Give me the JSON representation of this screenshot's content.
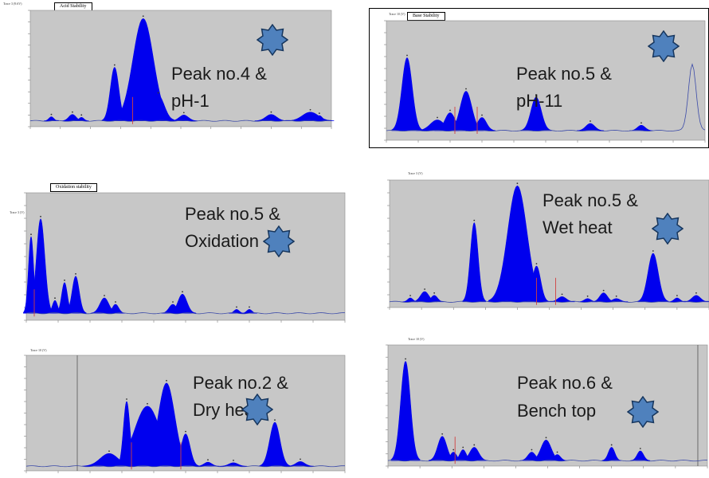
{
  "colors": {
    "fill": "#0000ee",
    "plot_bg": "#c7c7c7",
    "baseline": "#3b4aa8",
    "marker": "#d04040",
    "star": "#4f81bd",
    "star_edge": "#17365d",
    "watermark": "#e6e6e6"
  },
  "icons": {
    "badge": "star-icon"
  },
  "chart_data": [
    {
      "type": "area",
      "header": "Trace 3 (9.6V)",
      "tag": "Acid  Stability",
      "caption_line1": "Peak no.4 &",
      "caption_line2": "pH-1",
      "xlim": [
        0,
        100
      ],
      "ylim": [
        0,
        1000
      ],
      "baseline": 50,
      "peaks": [
        {
          "x": 7,
          "h": 35,
          "w": 0.8
        },
        {
          "x": 14,
          "h": 55,
          "w": 1.2
        },
        {
          "x": 17,
          "h": 30,
          "w": 0.8
        },
        {
          "x": 28,
          "h": 460,
          "w": 1.4
        },
        {
          "x": 37.5,
          "h": 880,
          "w": 3.4
        },
        {
          "x": 42.5,
          "h": 220,
          "w": 2.0
        },
        {
          "x": 51,
          "h": 50,
          "w": 1.5
        },
        {
          "x": 80,
          "h": 55,
          "w": 1.8
        },
        {
          "x": 93,
          "h": 75,
          "w": 2.6
        },
        {
          "x": 96,
          "h": 45,
          "w": 1.0
        }
      ],
      "markers": [
        34
      ]
    },
    {
      "type": "area",
      "header": "Trace 10 (V)",
      "tag": "Base Stability",
      "caption_line1": "Peak no.5 &",
      "caption_line2": "pH-11",
      "xlim": [
        0,
        100
      ],
      "ylim": [
        0,
        1000
      ],
      "baseline": 80,
      "peaks": [
        {
          "x": 6.5,
          "h": 610,
          "w": 1.6
        },
        {
          "x": 16,
          "h": 90,
          "w": 2.2
        },
        {
          "x": 20,
          "h": 150,
          "w": 1.6
        },
        {
          "x": 25,
          "h": 330,
          "w": 1.8
        },
        {
          "x": 30,
          "h": 110,
          "w": 1.4
        },
        {
          "x": 47,
          "h": 280,
          "w": 1.6
        },
        {
          "x": 64,
          "h": 60,
          "w": 1.4
        },
        {
          "x": 80,
          "h": 45,
          "w": 1.2
        }
      ],
      "line_peak": {
        "x": 96,
        "h": 560,
        "w": 1.2
      },
      "markers": [
        21.5,
        28.5
      ]
    },
    {
      "type": "area",
      "header": "Trace 3 (V)",
      "tag": "Oxidation stability",
      "caption_line1": "Peak no.5 &",
      "caption_line2": "Oxidation",
      "xlim": [
        0,
        100
      ],
      "ylim": [
        0,
        1000
      ],
      "baseline": 55,
      "peaks": [
        {
          "x": 1.5,
          "h": 600,
          "w": 0.8
        },
        {
          "x": 4.5,
          "h": 740,
          "w": 1.3
        },
        {
          "x": 9,
          "h": 100,
          "w": 0.8
        },
        {
          "x": 12,
          "h": 240,
          "w": 0.9
        },
        {
          "x": 15.5,
          "h": 290,
          "w": 1.1
        },
        {
          "x": 24.5,
          "h": 120,
          "w": 1.4
        },
        {
          "x": 28,
          "h": 70,
          "w": 1.0
        },
        {
          "x": 46,
          "h": 70,
          "w": 1.2
        },
        {
          "x": 49,
          "h": 150,
          "w": 1.4
        },
        {
          "x": 66,
          "h": 30,
          "w": 0.8
        },
        {
          "x": 70,
          "h": 30,
          "w": 0.8
        }
      ],
      "markers": [
        2.5
      ]
    },
    {
      "type": "area",
      "header": "Trace 3 (V)",
      "tag": "",
      "caption_line1": "Peak no.5 &",
      "caption_line2": "Wet heat",
      "xlim": [
        0,
        100
      ],
      "ylim": [
        0,
        1000
      ],
      "baseline": 45,
      "peaks": [
        {
          "x": 6.5,
          "h": 30,
          "w": 0.8
        },
        {
          "x": 11,
          "h": 80,
          "w": 1.3
        },
        {
          "x": 14,
          "h": 50,
          "w": 1.0
        },
        {
          "x": 26.5,
          "h": 620,
          "w": 1.2
        },
        {
          "x": 40,
          "h": 910,
          "w": 3.0
        },
        {
          "x": 46,
          "h": 280,
          "w": 1.3
        },
        {
          "x": 54,
          "h": 40,
          "w": 1.3
        },
        {
          "x": 62,
          "h": 25,
          "w": 1.0
        },
        {
          "x": 67,
          "h": 70,
          "w": 1.2
        },
        {
          "x": 71,
          "h": 25,
          "w": 1.2
        },
        {
          "x": 82.5,
          "h": 380,
          "w": 1.6
        },
        {
          "x": 90,
          "h": 30,
          "w": 0.9
        },
        {
          "x": 96,
          "h": 50,
          "w": 1.3
        }
      ],
      "markers": [
        46,
        52
      ]
    },
    {
      "type": "area",
      "header": "Trace 10 (V)",
      "tag": "",
      "caption_line1": "Peak no.2 &",
      "caption_line2": "Dry heat",
      "xlim": [
        0,
        100
      ],
      "ylim": [
        0,
        1000
      ],
      "baseline": 40,
      "peaks": [
        {
          "x": 26,
          "h": 110,
          "w": 2.8
        },
        {
          "x": 31.5,
          "h": 560,
          "w": 1.0
        },
        {
          "x": 38,
          "h": 520,
          "w": 4.0
        },
        {
          "x": 44,
          "h": 720,
          "w": 2.6
        },
        {
          "x": 50,
          "h": 280,
          "w": 1.4
        },
        {
          "x": 57,
          "h": 35,
          "w": 1.2
        },
        {
          "x": 65,
          "h": 30,
          "w": 1.4
        },
        {
          "x": 78,
          "h": 380,
          "w": 1.6
        },
        {
          "x": 86,
          "h": 40,
          "w": 1.4
        }
      ],
      "vline": 16,
      "markers": [
        33,
        48.5
      ]
    },
    {
      "type": "area",
      "header": "Trace 10 (V)",
      "tag": "",
      "caption_line1": "Peak no.6 &",
      "caption_line2": "Bench top",
      "xlim": [
        0,
        100
      ],
      "ylim": [
        0,
        1000
      ],
      "baseline": 45,
      "peaks": [
        {
          "x": 5.5,
          "h": 820,
          "w": 1.5
        },
        {
          "x": 17,
          "h": 200,
          "w": 1.4
        },
        {
          "x": 20.5,
          "h": 70,
          "w": 1.0
        },
        {
          "x": 23.5,
          "h": 90,
          "w": 1.0
        },
        {
          "x": 27,
          "h": 110,
          "w": 1.4
        },
        {
          "x": 45,
          "h": 70,
          "w": 1.2
        },
        {
          "x": 49.5,
          "h": 170,
          "w": 1.6
        },
        {
          "x": 53,
          "h": 50,
          "w": 1.0
        },
        {
          "x": 70,
          "h": 110,
          "w": 1.0
        },
        {
          "x": 79,
          "h": 80,
          "w": 1.0
        }
      ],
      "vline": 97,
      "markers": [
        21
      ]
    }
  ]
}
